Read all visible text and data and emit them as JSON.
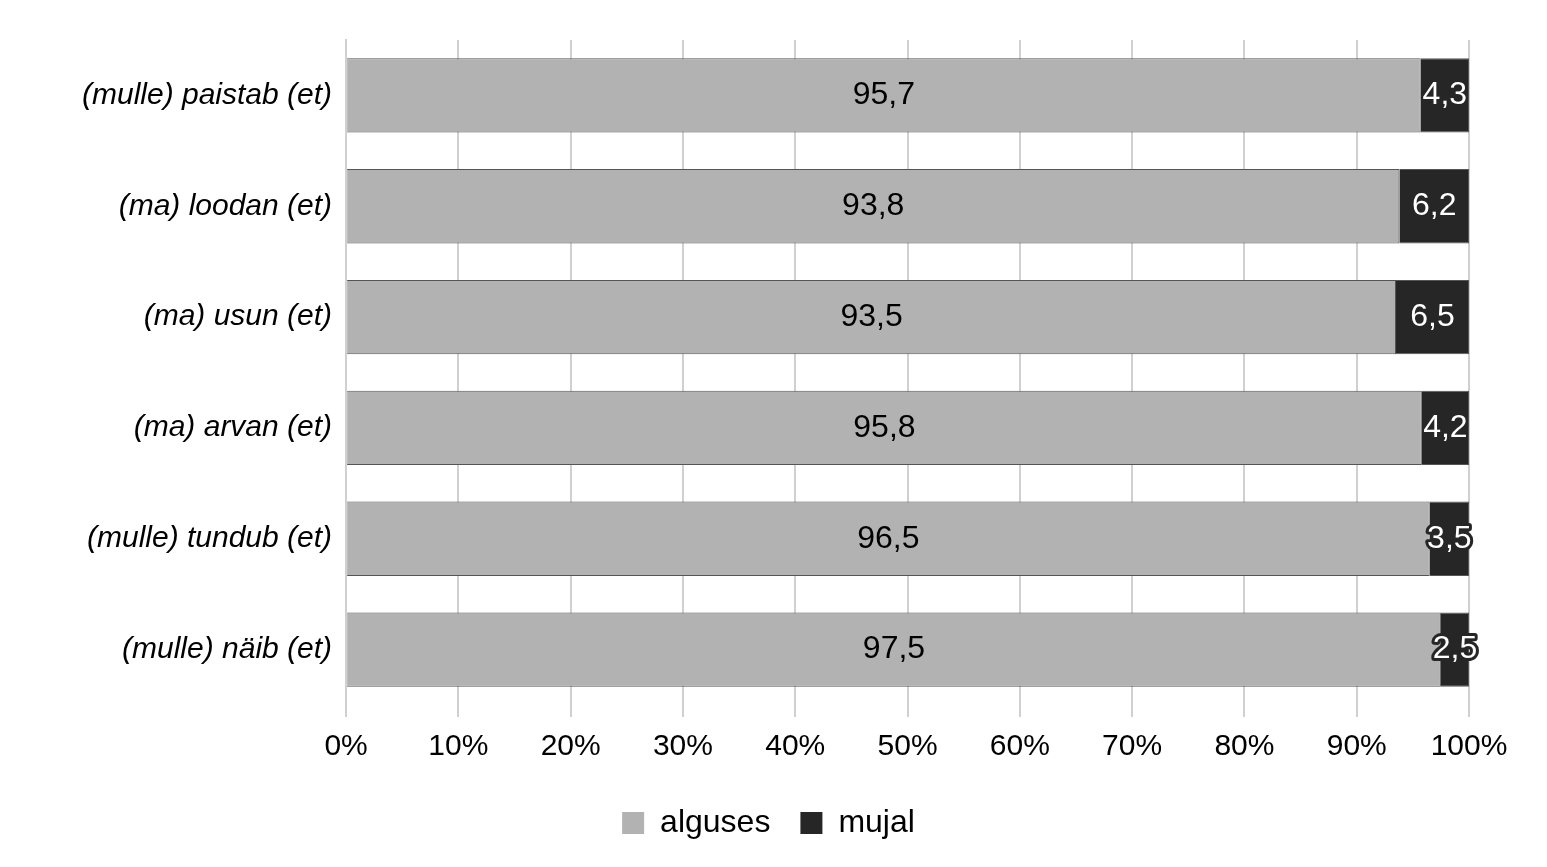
{
  "chart_data": {
    "type": "bar",
    "orientation": "horizontal",
    "stacked": true,
    "categories": [
      "(mulle) paistab (et)",
      "(ma) loodan (et)",
      "(ma) usun (et)",
      "(ma) arvan (et)",
      "(mulle) tundub (et)",
      "(mulle) näib (et)"
    ],
    "series": [
      {
        "name": "alguses",
        "color": "#b2b2b2",
        "values": [
          95.7,
          93.8,
          93.5,
          95.8,
          96.5,
          97.5
        ],
        "value_labels": [
          "95,7",
          "93,8",
          "93,5",
          "95,8",
          "96,5",
          "97,5"
        ]
      },
      {
        "name": "mujal",
        "color": "#262626",
        "values": [
          4.3,
          6.2,
          6.5,
          4.2,
          3.5,
          2.5
        ],
        "value_labels": [
          "4,3",
          "6,2",
          "6,5",
          "4,2",
          "3,5",
          "2,5"
        ]
      }
    ],
    "xlim": [
      0,
      100
    ],
    "xticks": [
      {
        "value": 0,
        "label": "0%"
      },
      {
        "value": 10,
        "label": "10%"
      },
      {
        "value": 20,
        "label": "20%"
      },
      {
        "value": 30,
        "label": "30%"
      },
      {
        "value": 40,
        "label": "40%"
      },
      {
        "value": 50,
        "label": "50%"
      },
      {
        "value": 60,
        "label": "60%"
      },
      {
        "value": 70,
        "label": "70%"
      },
      {
        "value": 80,
        "label": "80%"
      },
      {
        "value": 90,
        "label": "90%"
      },
      {
        "value": 100,
        "label": "100%"
      }
    ],
    "grid": "x",
    "legend": "bottom"
  }
}
